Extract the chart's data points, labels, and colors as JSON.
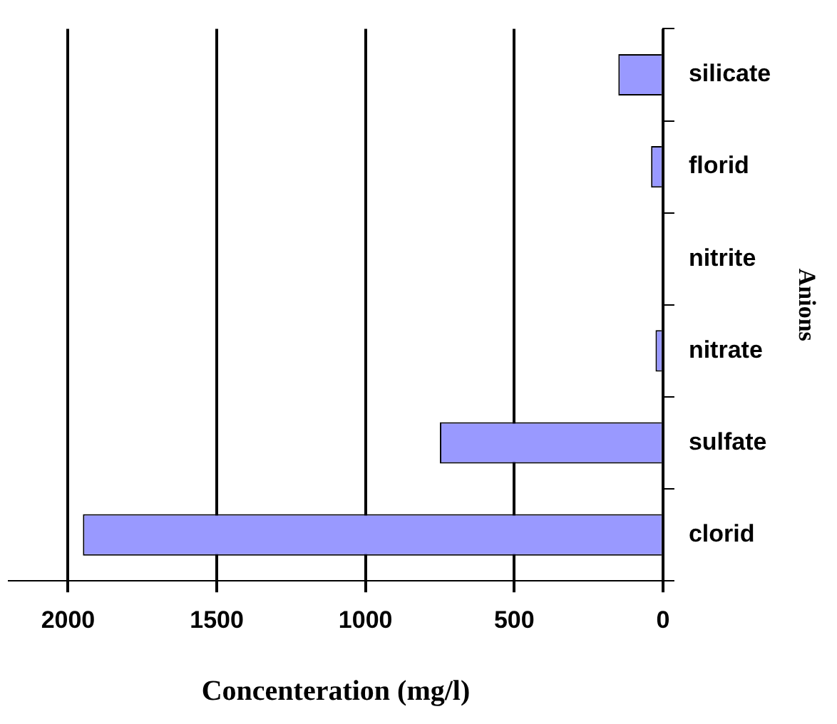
{
  "chart_data": {
    "type": "bar",
    "orientation": "horizontal",
    "xlabel": "Concenteration (mg/l)",
    "ylabel": "Anions",
    "categories": [
      "silicate",
      "florid",
      "nitrite",
      "nitrate",
      "sulfate",
      "clorid"
    ],
    "values": [
      150,
      40,
      0,
      25,
      750,
      1950
    ],
    "color": "#9999ff",
    "xlim": [
      2200,
      0
    ],
    "xticks": [
      2000,
      1500,
      1000,
      500,
      0
    ],
    "grid": "x",
    "legend": false
  }
}
